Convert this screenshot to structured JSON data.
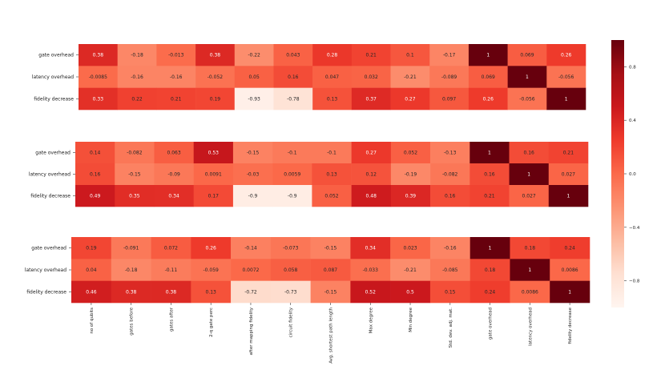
{
  "chart_data": {
    "type": "heatmap",
    "colormap": "Reds",
    "vmin": -1,
    "vmax": 1,
    "x_labels": [
      "no of qubits",
      "gates before",
      "gates after",
      "2-q gate perc",
      "after mapping fidelity",
      "circuit fidelity",
      "Avg. shortest path length",
      "Max degree",
      "Min degree",
      "Std. dev. adj. mat.",
      "gate overhead",
      "latency overhead",
      "fidelity decrease"
    ],
    "colorbar": {
      "ticks": [
        -0.8,
        -0.4,
        0.0,
        0.4,
        0.8
      ],
      "tick_labels": [
        "−0.8",
        "−0.4",
        "0.0",
        "0.4",
        "0.8"
      ]
    },
    "panels": [
      {
        "y_labels": [
          "gate overhead",
          "latency overhead",
          "fidelity decrease"
        ],
        "values": [
          [
            0.38,
            -0.18,
            -0.013,
            0.38,
            -0.22,
            0.043,
            0.28,
            0.21,
            0.1,
            -0.17,
            1,
            0.069,
            0.26
          ],
          [
            -0.0085,
            -0.16,
            -0.16,
            -0.052,
            0.05,
            0.16,
            0.047,
            0.032,
            -0.21,
            -0.089,
            0.069,
            1,
            -0.056
          ],
          [
            0.33,
            0.22,
            0.21,
            0.19,
            -0.93,
            -0.78,
            0.13,
            0.37,
            0.27,
            0.097,
            0.26,
            -0.056,
            1
          ]
        ],
        "labels": [
          [
            "0.38",
            "-0.18",
            "-0.013",
            "0.38",
            "-0.22",
            "0.043",
            "0.28",
            "0.21",
            "0.1",
            "-0.17",
            "1",
            "0.069",
            "0.26"
          ],
          [
            "-0.0085",
            "-0.16",
            "-0.16",
            "-0.052",
            "0.05",
            "0.16",
            "0.047",
            "0.032",
            "-0.21",
            "-0.089",
            "0.069",
            "1",
            "-0.056"
          ],
          [
            "0.33",
            "0.22",
            "0.21",
            "0.19",
            "-0.93",
            "-0.78",
            "0.13",
            "0.37",
            "0.27",
            "0.097",
            "0.26",
            "-0.056",
            "1"
          ]
        ]
      },
      {
        "y_labels": [
          "gate overhead",
          "latency overhead",
          "fidelity decrease"
        ],
        "values": [
          [
            0.14,
            -0.082,
            0.063,
            0.53,
            -0.15,
            -0.1,
            -0.1,
            0.27,
            0.052,
            -0.13,
            1,
            0.16,
            0.21
          ],
          [
            0.16,
            -0.15,
            -0.09,
            0.0091,
            -0.03,
            0.0059,
            0.13,
            0.12,
            -0.19,
            -0.082,
            0.16,
            1,
            0.027
          ],
          [
            0.49,
            0.35,
            0.34,
            0.17,
            -0.9,
            -0.9,
            0.052,
            0.48,
            0.39,
            0.16,
            0.21,
            0.027,
            1
          ]
        ],
        "labels": [
          [
            "0.14",
            "-0.082",
            "0.063",
            "0.53",
            "-0.15",
            "-0.1",
            "-0.1",
            "0.27",
            "0.052",
            "-0.13",
            "1",
            "0.16",
            "0.21"
          ],
          [
            "0.16",
            "-0.15",
            "-0.09",
            "0.0091",
            "-0.03",
            "0.0059",
            "0.13",
            "0.12",
            "-0.19",
            "-0.082",
            "0.16",
            "1",
            "0.027"
          ],
          [
            "0.49",
            "0.35",
            "0.34",
            "0.17",
            "-0.9",
            "-0.9",
            "0.052",
            "0.48",
            "0.39",
            "0.16",
            "0.21",
            "0.027",
            "1"
          ]
        ]
      },
      {
        "y_labels": [
          "gate overhead",
          "latency overhead",
          "fidelity decrease"
        ],
        "values": [
          [
            0.19,
            -0.091,
            0.072,
            0.26,
            -0.14,
            -0.073,
            -0.15,
            0.34,
            0.023,
            -0.16,
            1,
            0.18,
            0.24
          ],
          [
            0.04,
            -0.18,
            -0.11,
            -0.059,
            0.0072,
            0.058,
            0.087,
            -0.033,
            -0.21,
            -0.085,
            0.18,
            1,
            0.0086
          ],
          [
            0.46,
            0.38,
            0.38,
            0.13,
            -0.72,
            -0.73,
            -0.15,
            0.52,
            0.5,
            0.15,
            0.24,
            0.0086,
            1
          ]
        ],
        "labels": [
          [
            "0.19",
            "-0.091",
            "0.072",
            "0.26",
            "-0.14",
            "-0.073",
            "-0.15",
            "0.34",
            "0.023",
            "-0.16",
            "1",
            "0.18",
            "0.24"
          ],
          [
            "0.04",
            "-0.18",
            "-0.11",
            "-0.059",
            "0.0072",
            "0.058",
            "0.087",
            "-0.033",
            "-0.21",
            "-0.085",
            "0.18",
            "1",
            "0.0086"
          ],
          [
            "0.46",
            "0.38",
            "0.38",
            "0.13",
            "-0.72",
            "-0.73",
            "-0.15",
            "0.52",
            "0.5",
            "0.15",
            "0.24",
            "0.0086",
            "1"
          ]
        ]
      }
    ]
  }
}
